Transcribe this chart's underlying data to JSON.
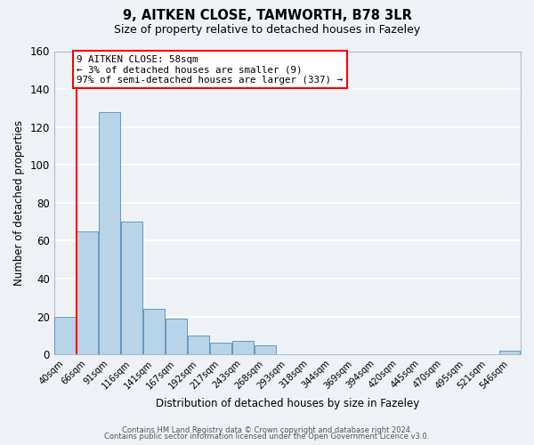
{
  "title": "9, AITKEN CLOSE, TAMWORTH, B78 3LR",
  "subtitle": "Size of property relative to detached houses in Fazeley",
  "xlabel": "Distribution of detached houses by size in Fazeley",
  "ylabel": "Number of detached properties",
  "bar_color": "#b8d4e8",
  "bar_edge_color": "#6699bb",
  "background_color": "#eef2f7",
  "grid_color": "#ffffff",
  "categories": [
    "40sqm",
    "66sqm",
    "91sqm",
    "116sqm",
    "141sqm",
    "167sqm",
    "192sqm",
    "217sqm",
    "243sqm",
    "268sqm",
    "293sqm",
    "318sqm",
    "344sqm",
    "369sqm",
    "394sqm",
    "420sqm",
    "445sqm",
    "470sqm",
    "495sqm",
    "521sqm",
    "546sqm"
  ],
  "values": [
    20,
    65,
    128,
    70,
    24,
    19,
    10,
    6,
    7,
    5,
    0,
    0,
    0,
    0,
    0,
    0,
    0,
    0,
    0,
    0,
    2
  ],
  "ylim": [
    0,
    160
  ],
  "yticks": [
    0,
    20,
    40,
    60,
    80,
    100,
    120,
    140,
    160
  ],
  "red_line_index": 0,
  "annotation_line1": "9 AITKEN CLOSE: 58sqm",
  "annotation_line2": "← 3% of detached houses are smaller (9)",
  "annotation_line3": "97% of semi-detached houses are larger (337) →",
  "footer_line1": "Contains HM Land Registry data © Crown copyright and database right 2024.",
  "footer_line2": "Contains public sector information licensed under the Open Government Licence v3.0."
}
